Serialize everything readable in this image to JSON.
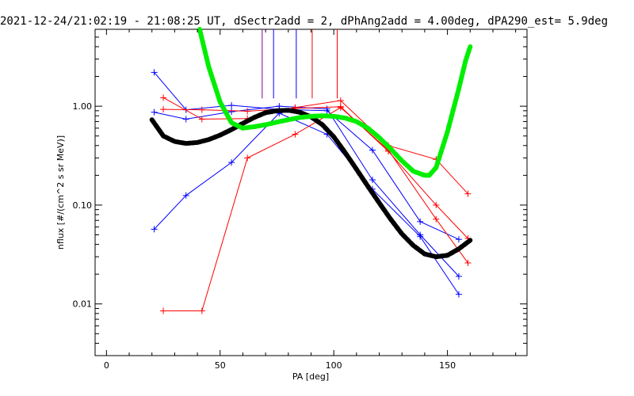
{
  "chart_data": {
    "type": "line",
    "title": "2021-12-24/21:02:19 - 21:08:25 UT, dSectr2add = 2, dPhAng2add = 4.00deg, dPA290_est=   5.9deg",
    "xlabel": "PA [deg]",
    "ylabel": "nflux [#/(cm^2 s sr MeV)]",
    "xlim": [
      -5,
      185
    ],
    "ylim": [
      0.003,
      6
    ],
    "yscale": "log",
    "x_ticks": [
      0,
      50,
      100,
      150
    ],
    "x_tick_labels": [
      "0",
      "50",
      "100",
      "150"
    ],
    "y_ticks": [
      0.01,
      0.1,
      1.0
    ],
    "y_tick_labels": [
      "0.01",
      "0.10",
      "1.00"
    ],
    "grid": false,
    "series": [
      {
        "color": "#0000ff",
        "x": [
          21,
          35,
          55,
          76,
          97,
          117,
          138,
          155
        ],
        "y": [
          2.2,
          0.92,
          1.02,
          0.93,
          0.9,
          0.36,
          0.068,
          0.045
        ]
      },
      {
        "color": "#0000ff",
        "x": [
          21,
          35,
          55,
          76,
          97,
          117,
          138,
          155
        ],
        "y": [
          0.87,
          0.74,
          0.88,
          1.0,
          0.94,
          0.18,
          0.05,
          0.019
        ]
      },
      {
        "color": "#0000ff",
        "x": [
          21,
          35,
          55,
          76,
          97,
          117,
          138,
          155
        ],
        "y": [
          0.057,
          0.125,
          0.27,
          0.85,
          0.52,
          0.145,
          0.048,
          0.0125
        ]
      },
      {
        "color": "#ff0000",
        "x": [
          25,
          42,
          62,
          83,
          103,
          124,
          145,
          159
        ],
        "y": [
          1.22,
          0.74,
          0.75,
          0.97,
          1.14,
          0.4,
          0.29,
          0.13
        ]
      },
      {
        "color": "#ff0000",
        "x": [
          25,
          42,
          62,
          83,
          103,
          124,
          145,
          159
        ],
        "y": [
          0.93,
          0.92,
          0.89,
          0.95,
          0.99,
          0.35,
          0.1,
          0.046
        ]
      },
      {
        "color": "#ff0000",
        "x": [
          25,
          42,
          62,
          83,
          103,
          124,
          145,
          159
        ],
        "y": [
          0.0085,
          0.0085,
          0.3,
          0.52,
          0.97,
          0.36,
          0.072,
          0.026
        ]
      }
    ],
    "fits": [
      {
        "color": "#000000",
        "x": [
          20,
          25,
          30,
          35,
          40,
          45,
          50,
          55,
          60,
          65,
          70,
          75,
          80,
          85,
          90,
          95,
          100,
          105,
          110,
          115,
          120,
          125,
          130,
          135,
          140,
          145,
          150,
          155,
          160
        ],
        "y": [
          0.73,
          0.5,
          0.44,
          0.42,
          0.43,
          0.46,
          0.51,
          0.58,
          0.67,
          0.77,
          0.86,
          0.9,
          0.91,
          0.87,
          0.78,
          0.65,
          0.49,
          0.34,
          0.23,
          0.155,
          0.105,
          0.072,
          0.051,
          0.039,
          0.032,
          0.03,
          0.031,
          0.036,
          0.044
        ]
      },
      {
        "color": "#00ee00",
        "x": [
          41,
          45,
          50,
          55,
          60,
          65,
          70,
          75,
          80,
          85,
          90,
          95,
          100,
          105,
          110,
          115,
          120,
          125,
          130,
          135,
          140,
          142,
          145,
          150,
          155,
          158,
          160
        ],
        "y": [
          6.0,
          2.5,
          1.1,
          0.68,
          0.6,
          0.62,
          0.65,
          0.69,
          0.73,
          0.77,
          0.79,
          0.8,
          0.79,
          0.76,
          0.7,
          0.6,
          0.48,
          0.37,
          0.28,
          0.22,
          0.2,
          0.2,
          0.24,
          0.55,
          1.5,
          2.9,
          4.0
        ]
      }
    ],
    "vertical_markers": [
      {
        "color": "#800080",
        "x": 68.5,
        "y_from": 1.2
      },
      {
        "color": "#0000ff",
        "x": 73.5,
        "y_from": 1.2
      },
      {
        "color": "#0000ff",
        "x": 83.5,
        "y_from": 1.2
      },
      {
        "color": "#ff0000",
        "x": 90.5,
        "y_from": 1.2
      },
      {
        "color": "#ff0000",
        "x": 101.5,
        "y_from": 1.2
      }
    ]
  }
}
